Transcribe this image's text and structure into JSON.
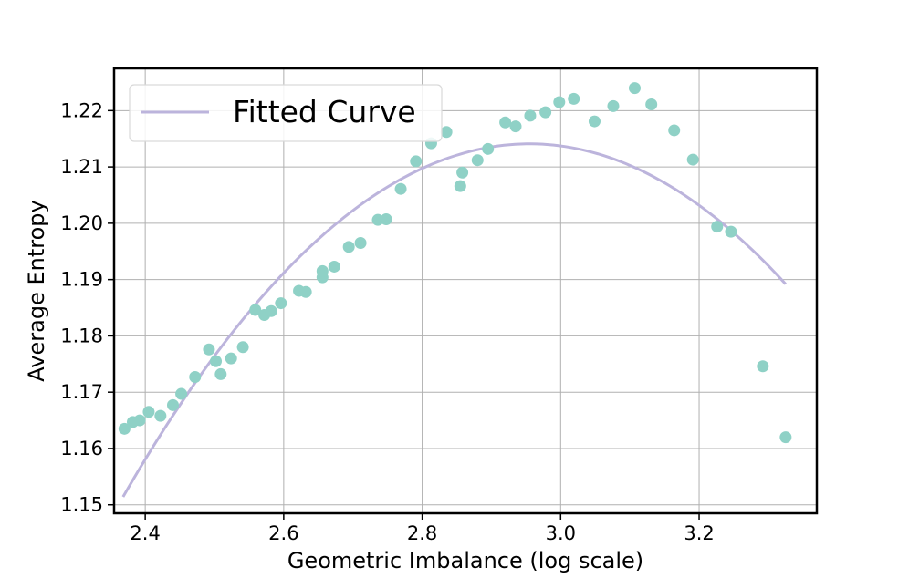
{
  "chart_data": {
    "type": "scatter",
    "title": "",
    "xlabel": "Geometric Imbalance (log scale)",
    "ylabel": "Average Entropy",
    "xlim": [
      2.355,
      3.37
    ],
    "ylim": [
      1.1485,
      1.2275
    ],
    "grid": true,
    "xticks": [
      2.4,
      2.6,
      2.8,
      3.0,
      3.2
    ],
    "xtick_labels": [
      "2.4",
      "2.6",
      "2.8",
      "3.0",
      "3.2"
    ],
    "yticks": [
      1.15,
      1.16,
      1.17,
      1.18,
      1.19,
      1.2,
      1.21,
      1.22
    ],
    "ytick_labels": [
      "1.15",
      "1.16",
      "1.17",
      "1.18",
      "1.19",
      "1.20",
      "1.21",
      "1.22"
    ],
    "legend": {
      "position": "top-left",
      "entries": [
        "Fitted Curve"
      ]
    },
    "colors": {
      "points": "#8fd1c6",
      "curve": "#bcb4dc",
      "grid": "#b0b0b0",
      "axes": "#000000"
    },
    "series": [
      {
        "name": "data points",
        "type": "scatter",
        "x": [
          2.37,
          2.382,
          2.392,
          2.405,
          2.422,
          2.44,
          2.452,
          2.472,
          2.492,
          2.502,
          2.509,
          2.524,
          2.541,
          2.559,
          2.572,
          2.582,
          2.596,
          2.622,
          2.632,
          2.656,
          2.656,
          2.673,
          2.694,
          2.711,
          2.736,
          2.748,
          2.769,
          2.791,
          2.813,
          2.835,
          2.855,
          2.858,
          2.88,
          2.895,
          2.92,
          2.935,
          2.956,
          2.978,
          2.998,
          3.019,
          3.049,
          3.076,
          3.107,
          3.131,
          3.164,
          3.191,
          3.226,
          3.246,
          3.292,
          3.325
        ],
        "y": [
          1.1635,
          1.1647,
          1.165,
          1.1665,
          1.1658,
          1.1677,
          1.1697,
          1.1727,
          1.1776,
          1.1755,
          1.1732,
          1.176,
          1.178,
          1.1846,
          1.1837,
          1.1844,
          1.1858,
          1.188,
          1.1878,
          1.1904,
          1.1915,
          1.1923,
          1.1958,
          1.1965,
          1.2006,
          1.2007,
          1.2061,
          1.211,
          1.2142,
          1.2162,
          1.2066,
          1.209,
          1.2112,
          1.2132,
          1.2179,
          1.2172,
          1.2191,
          1.2197,
          1.2215,
          1.2221,
          1.2181,
          1.2208,
          1.224,
          1.2211,
          1.2165,
          1.2113,
          1.1994,
          1.1985,
          1.1746,
          1.162
        ]
      },
      {
        "name": "Fitted Curve",
        "type": "line",
        "model": "quadratic",
        "vertex": [
          2.955,
          1.2141
        ],
        "coef_a": -0.1819,
        "x_range": [
          2.368,
          3.325
        ]
      }
    ]
  }
}
